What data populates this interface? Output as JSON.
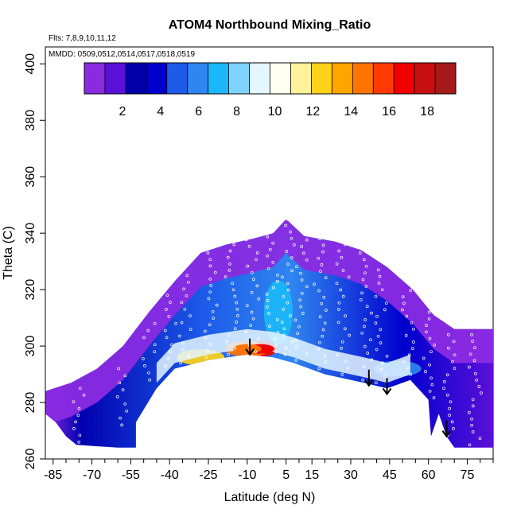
{
  "chart_data": {
    "type": "heatmap",
    "title": "ATOM4 Northbound Mixing_Ratio",
    "flights_note": "Flts: 7,8,9,10,11,12",
    "dates_note": "MMDD: 0509,0512,0514,0517,0518,0519",
    "xlabel": "Latitude (deg N)",
    "ylabel": "Theta (C)",
    "xlim": [
      -88,
      85
    ],
    "ylim": [
      260,
      406
    ],
    "x_ticks": [
      -85,
      -70,
      -55,
      -40,
      -25,
      -10,
      5,
      15,
      30,
      45,
      60,
      75
    ],
    "y_ticks": [
      260,
      280,
      300,
      320,
      340,
      360,
      380,
      400
    ],
    "colorbar": {
      "range": [
        0,
        19.5
      ],
      "ticks": [
        2,
        4,
        6,
        8,
        10,
        12,
        14,
        16,
        18
      ],
      "colors": [
        "#8a2be2",
        "#5b10d8",
        "#0000a8",
        "#0000cd",
        "#1c5ae8",
        "#2f86f0",
        "#1ab8f8",
        "#7fd4ff",
        "#e4f6ff",
        "#fffff0",
        "#fff29a",
        "#ffd21a",
        "#ffa500",
        "#ff7400",
        "#ff3a00",
        "#f00000",
        "#c81010",
        "#a41a1a"
      ]
    },
    "field": {
      "lower_boundary": [
        [
          -88,
          276
        ],
        [
          -84,
          273
        ],
        [
          -80,
          268
        ],
        [
          -76,
          265
        ],
        [
          -60,
          264
        ],
        [
          -53,
          264
        ],
        [
          -53,
          273
        ],
        [
          -45,
          285
        ],
        [
          -38,
          292
        ],
        [
          -25,
          295
        ],
        [
          -10,
          297
        ],
        [
          0,
          296
        ],
        [
          8,
          294
        ],
        [
          20,
          290
        ],
        [
          35,
          287
        ],
        [
          44,
          285
        ],
        [
          53,
          288
        ],
        [
          60,
          281
        ],
        [
          61,
          268
        ],
        [
          64,
          276
        ],
        [
          67,
          268
        ],
        [
          70,
          264
        ],
        [
          85,
          264
        ]
      ],
      "upper_boundary": [
        [
          -88,
          284
        ],
        [
          -78,
          287
        ],
        [
          -68,
          292
        ],
        [
          -58,
          300
        ],
        [
          -48,
          312
        ],
        [
          -38,
          323
        ],
        [
          -28,
          333
        ],
        [
          -18,
          336
        ],
        [
          -8,
          338
        ],
        [
          0,
          340
        ],
        [
          5,
          345
        ],
        [
          12,
          339
        ],
        [
          24,
          337
        ],
        [
          34,
          334
        ],
        [
          44,
          328
        ],
        [
          54,
          320
        ],
        [
          62,
          311
        ],
        [
          70,
          306
        ],
        [
          85,
          306
        ]
      ],
      "features": [
        {
          "name": "high-core",
          "lat": -5,
          "theta": 299,
          "value": 17
        },
        {
          "name": "orange-band",
          "lat": -10,
          "theta": 299,
          "value": 15
        },
        {
          "name": "left-yellow",
          "lat": -28,
          "theta": 296,
          "value": 12
        },
        {
          "name": "moist-tongue",
          "lat": 2,
          "theta": 312,
          "value": 7
        },
        {
          "name": "right-blue",
          "lat": 48,
          "theta": 292,
          "value": 6
        }
      ]
    },
    "flight_tracks": [
      {
        "lat": -75,
        "theta_range": [
          266,
          285
        ]
      },
      {
        "lat": -58,
        "theta_range": [
          272,
          292
        ]
      },
      {
        "lat": -48,
        "theta_range": [
          288,
          308
        ]
      },
      {
        "lat": -40,
        "theta_range": [
          293,
          318
        ]
      },
      {
        "lat": -34,
        "theta_range": [
          294,
          325
        ]
      },
      {
        "lat": -24,
        "theta_range": [
          296,
          333
        ]
      },
      {
        "lat": -16,
        "theta_range": [
          297,
          336
        ]
      },
      {
        "lat": -8,
        "theta_range": [
          298,
          340
        ]
      },
      {
        "lat": 0,
        "theta_range": [
          298,
          341
        ]
      },
      {
        "lat": 6,
        "theta_range": [
          297,
          345
        ]
      },
      {
        "lat": 11,
        "theta_range": [
          295,
          340
        ]
      },
      {
        "lat": 18,
        "theta_range": [
          292,
          338
        ]
      },
      {
        "lat": 27,
        "theta_range": [
          290,
          336
        ]
      },
      {
        "lat": 36,
        "theta_range": [
          288,
          333
        ]
      },
      {
        "lat": 42,
        "theta_range": [
          287,
          327
        ]
      },
      {
        "lat": 52,
        "theta_range": [
          290,
          322
        ]
      },
      {
        "lat": 60,
        "theta_range": [
          270,
          312
        ]
      },
      {
        "lat": 68,
        "theta_range": [
          266,
          304
        ]
      },
      {
        "lat": 78,
        "theta_range": [
          265,
          304
        ]
      }
    ],
    "arrows": [
      {
        "lat": -9,
        "theta": 297
      },
      {
        "lat": 37,
        "theta": 286
      },
      {
        "lat": 44,
        "theta": 283
      },
      {
        "lat": 67,
        "theta": 268
      }
    ]
  }
}
